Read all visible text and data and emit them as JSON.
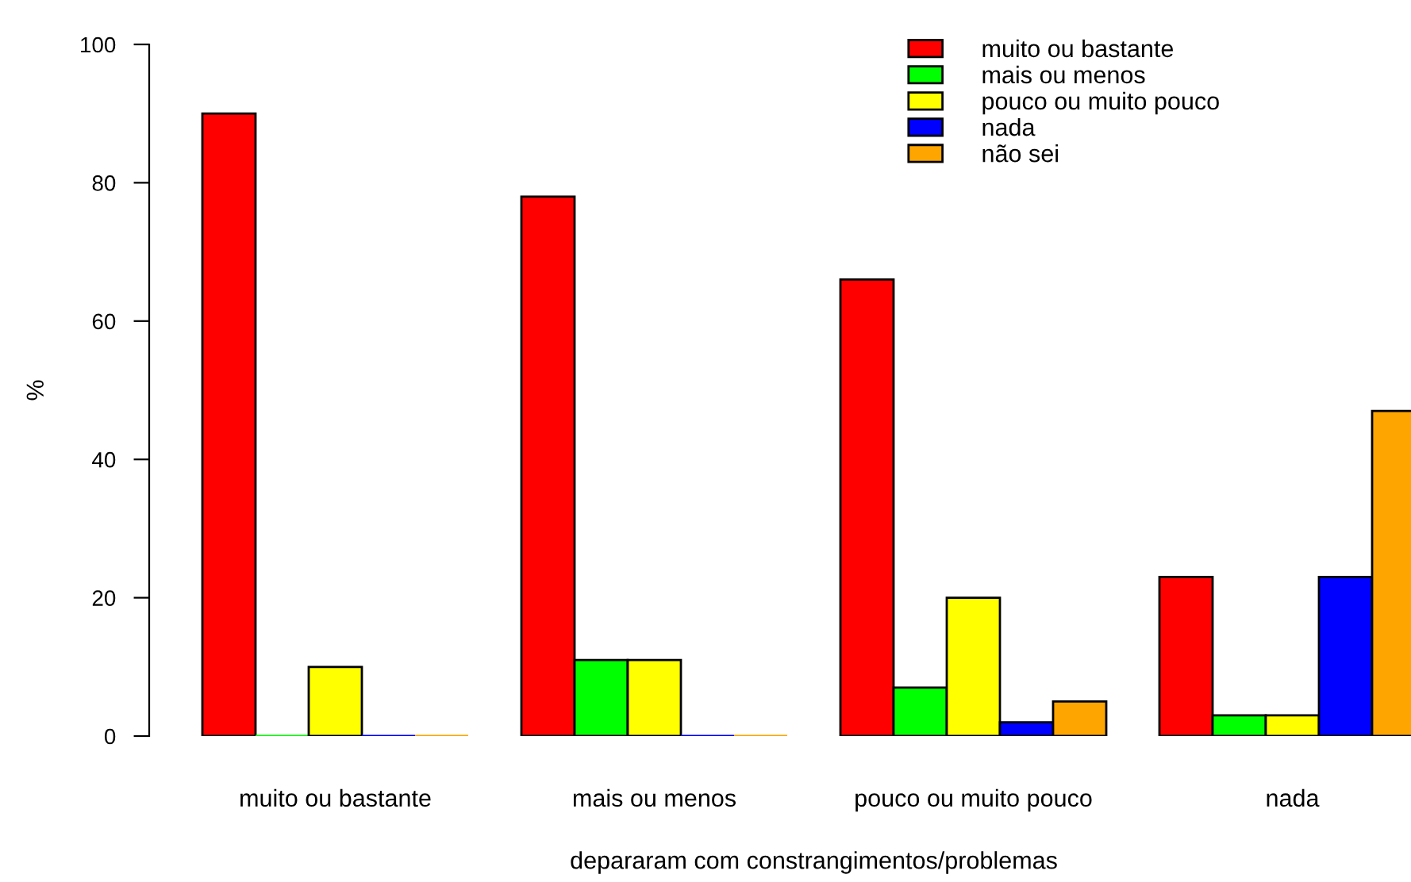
{
  "chart_data": {
    "type": "bar",
    "xlabel": "depararam com constrangimentos/problemas",
    "ylabel": "%",
    "categories": [
      "muito ou bastante",
      "mais ou menos",
      "pouco ou muito pouco",
      "nada"
    ],
    "series": [
      {
        "name": "muito ou bastante",
        "color": "#ff0000",
        "values": [
          90,
          78,
          66,
          23
        ]
      },
      {
        "name": "mais ou menos",
        "color": "#00ff00",
        "values": [
          0,
          11,
          7,
          3
        ]
      },
      {
        "name": "pouco ou muito pouco",
        "color": "#ffff00",
        "values": [
          10,
          11,
          20,
          3
        ]
      },
      {
        "name": "nada",
        "color": "#0000ff",
        "values": [
          0,
          0,
          2,
          23
        ]
      },
      {
        "name": "não sei",
        "color": "#ffa500",
        "values": [
          0,
          0,
          5,
          47
        ]
      }
    ],
    "ylim": [
      0,
      100
    ],
    "yticks": [
      0,
      20,
      40,
      60,
      80,
      100
    ],
    "grid": false,
    "legend": "top right"
  }
}
